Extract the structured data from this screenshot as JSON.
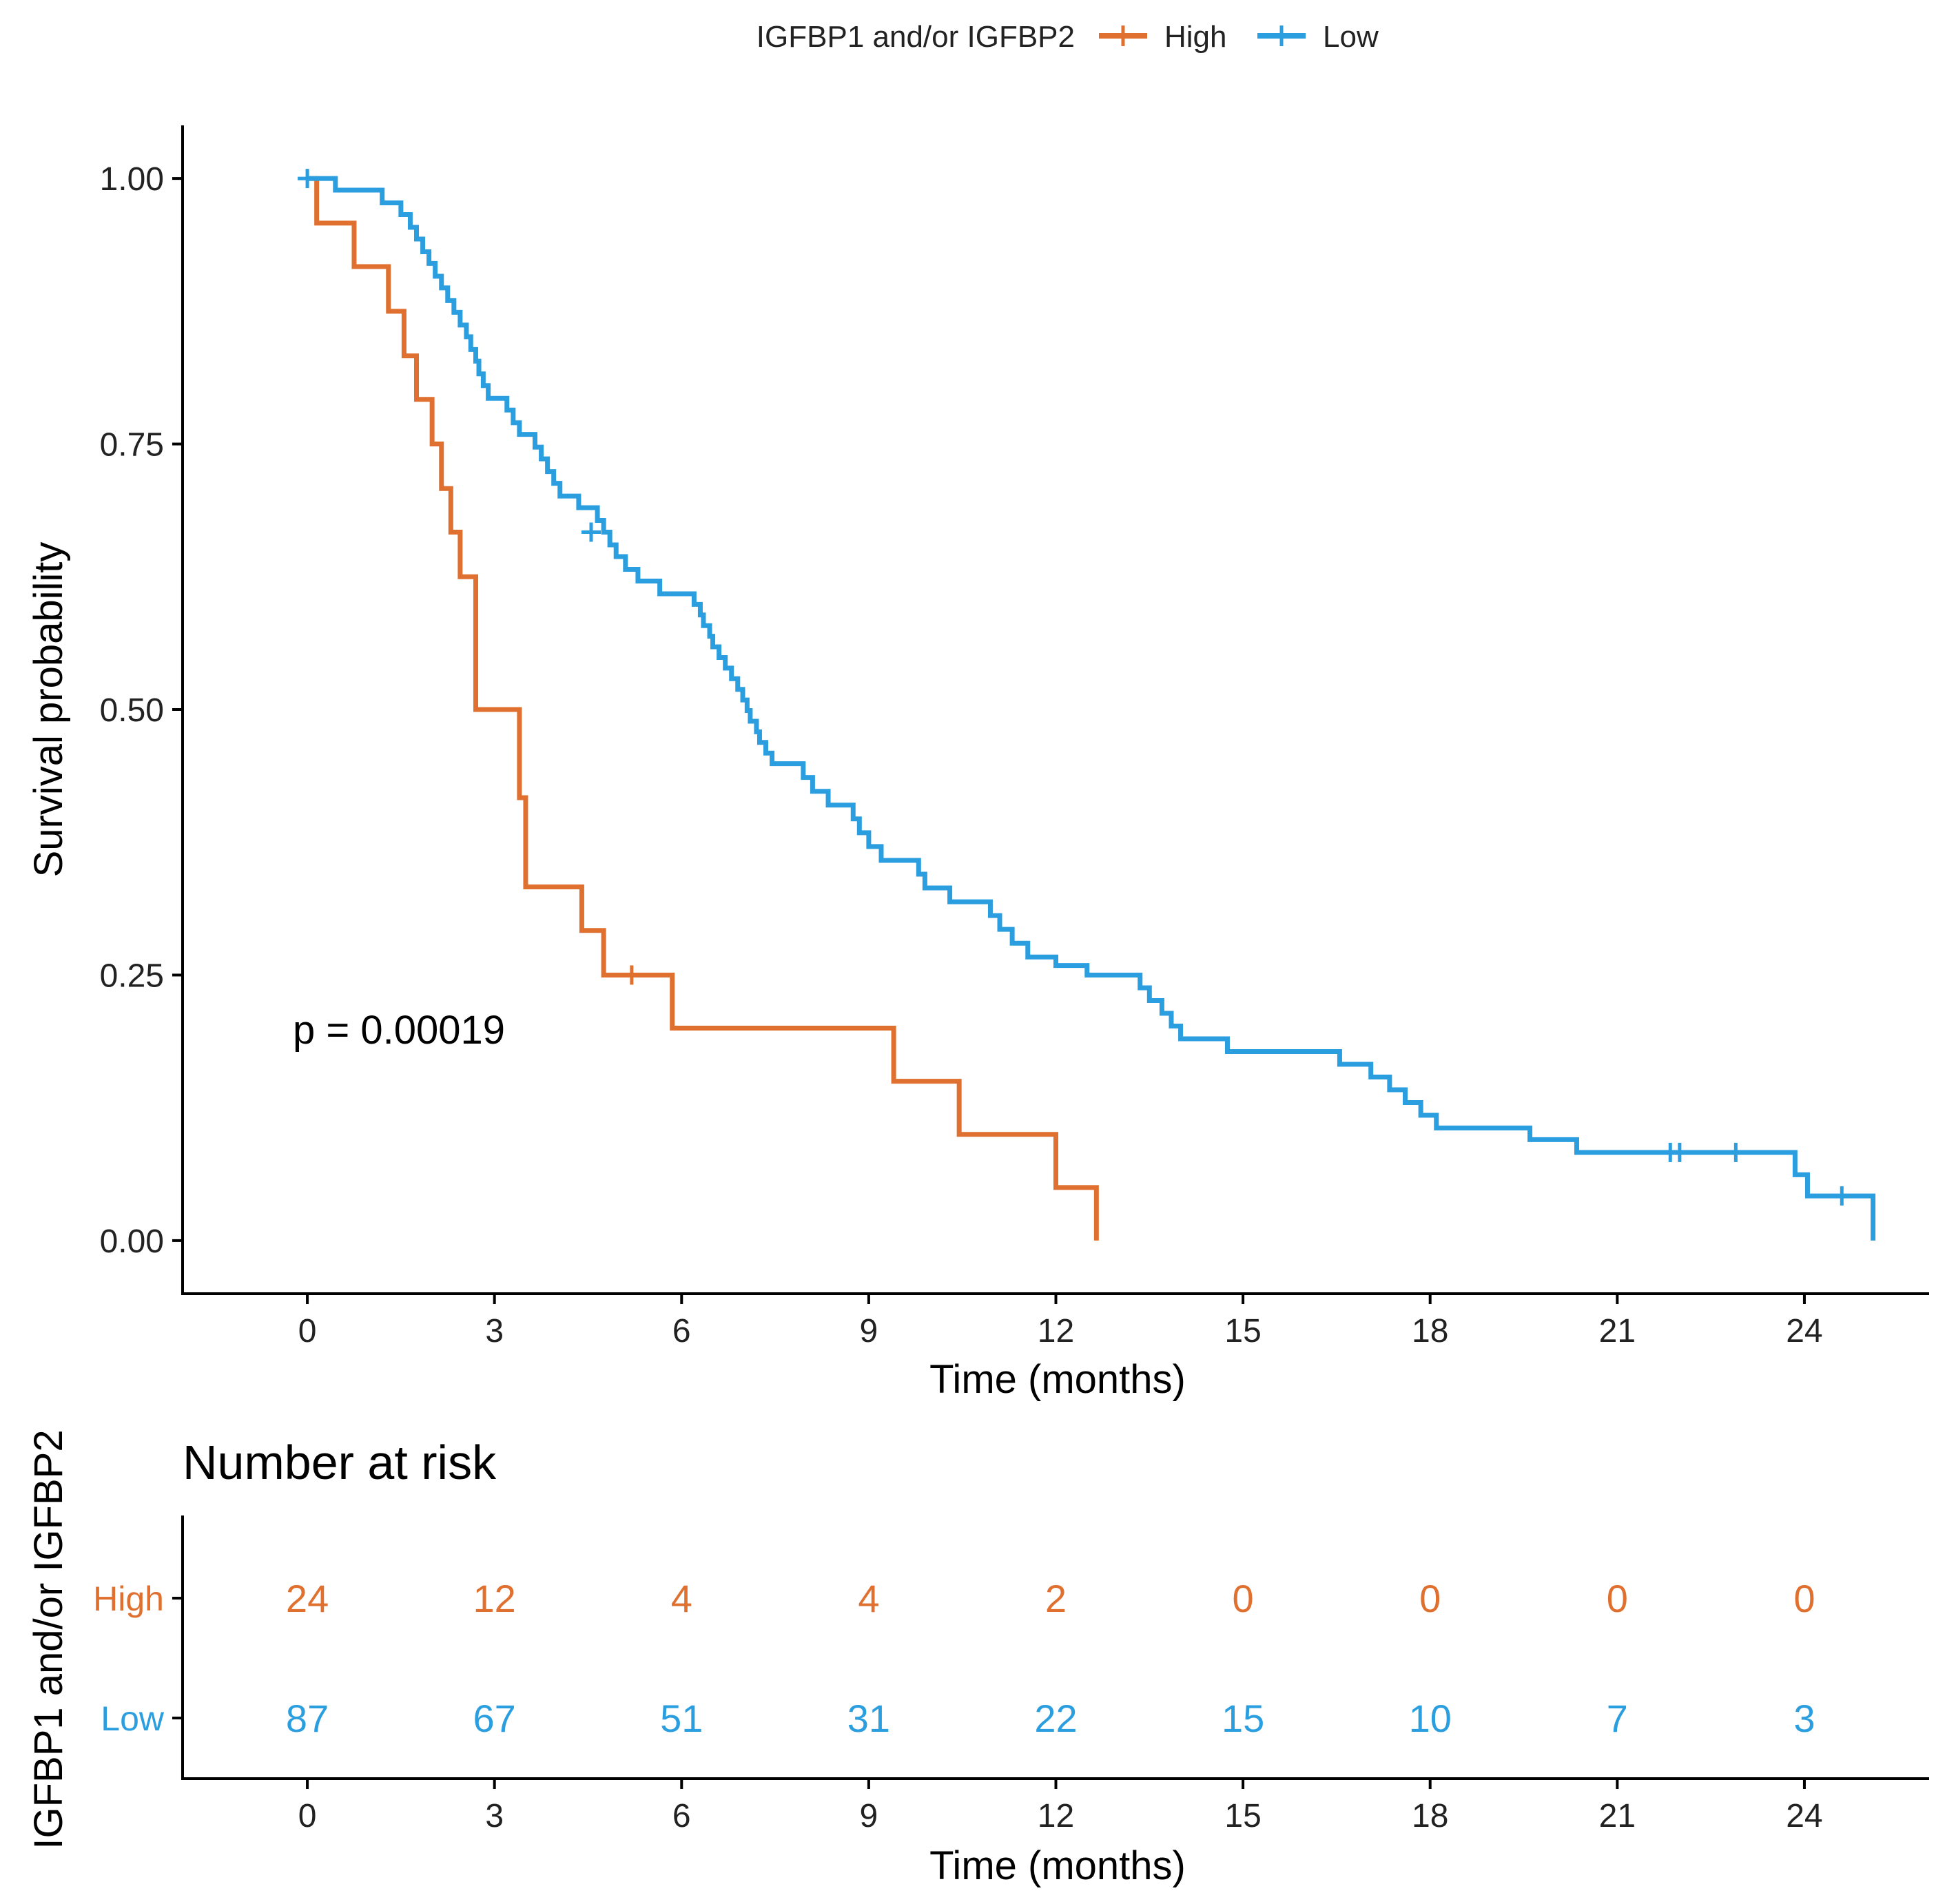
{
  "chart_data": [
    {
      "type": "line",
      "subtype": "kaplan-meier",
      "title": "",
      "xlabel": "Time (months)",
      "ylabel": "Survival probability",
      "xlim": [
        -2,
        26
      ],
      "ylim": [
        -0.05,
        1.05
      ],
      "x_ticks": [
        "0",
        "3",
        "6",
        "9",
        "12",
        "15",
        "18",
        "21",
        "24"
      ],
      "y_ticks": [
        "0.00",
        "0.25",
        "0.50",
        "0.75",
        "1.00"
      ],
      "grid": false,
      "legend": {
        "position": "top",
        "title": "IGFBP1 and/or IGFBP2",
        "entries": [
          "High",
          "Low"
        ]
      },
      "annotation": "p = 0.00019",
      "series": [
        {
          "name": "High",
          "color": "#E0702F",
          "steps": [
            [
              0,
              1.0
            ],
            [
              0.15,
              0.958
            ],
            [
              0.75,
              0.917
            ],
            [
              1.3,
              0.875
            ],
            [
              1.55,
              0.833
            ],
            [
              1.75,
              0.792
            ],
            [
              2.0,
              0.75
            ],
            [
              2.15,
              0.708
            ],
            [
              2.3,
              0.667
            ],
            [
              2.45,
              0.625
            ],
            [
              2.7,
              0.5
            ],
            [
              3.4,
              0.417
            ],
            [
              3.5,
              0.333
            ],
            [
              4.4,
              0.292
            ],
            [
              4.75,
              0.25
            ],
            [
              5.85,
              0.2
            ],
            [
              9.4,
              0.15
            ],
            [
              10.45,
              0.1
            ],
            [
              12.0,
              0.05
            ],
            [
              12.65,
              0.0
            ]
          ],
          "censored": [
            [
              5.2,
              0.25
            ]
          ]
        },
        {
          "name": "Low",
          "color": "#2B9EDF",
          "steps": [
            [
              0,
              1.0
            ],
            [
              0.45,
              0.989
            ],
            [
              1.2,
              0.977
            ],
            [
              1.5,
              0.966
            ],
            [
              1.65,
              0.954
            ],
            [
              1.75,
              0.943
            ],
            [
              1.85,
              0.931
            ],
            [
              1.95,
              0.92
            ],
            [
              2.05,
              0.908
            ],
            [
              2.15,
              0.897
            ],
            [
              2.25,
              0.885
            ],
            [
              2.35,
              0.874
            ],
            [
              2.45,
              0.862
            ],
            [
              2.55,
              0.851
            ],
            [
              2.62,
              0.839
            ],
            [
              2.7,
              0.828
            ],
            [
              2.75,
              0.816
            ],
            [
              2.82,
              0.805
            ],
            [
              2.9,
              0.793
            ],
            [
              3.2,
              0.782
            ],
            [
              3.3,
              0.77
            ],
            [
              3.4,
              0.759
            ],
            [
              3.65,
              0.747
            ],
            [
              3.75,
              0.736
            ],
            [
              3.85,
              0.724
            ],
            [
              3.95,
              0.713
            ],
            [
              4.05,
              0.701
            ],
            [
              4.35,
              0.69
            ],
            [
              4.65,
              0.678
            ],
            [
              4.75,
              0.667
            ],
            [
              4.85,
              0.655
            ],
            [
              4.95,
              0.644
            ],
            [
              5.1,
              0.632
            ],
            [
              5.3,
              0.621
            ],
            [
              5.65,
              0.609
            ],
            [
              6.2,
              0.599
            ],
            [
              6.3,
              0.589
            ],
            [
              6.35,
              0.579
            ],
            [
              6.45,
              0.569
            ],
            [
              6.5,
              0.559
            ],
            [
              6.6,
              0.549
            ],
            [
              6.7,
              0.539
            ],
            [
              6.8,
              0.529
            ],
            [
              6.9,
              0.519
            ],
            [
              6.98,
              0.509
            ],
            [
              7.05,
              0.499
            ],
            [
              7.1,
              0.489
            ],
            [
              7.2,
              0.479
            ],
            [
              7.25,
              0.469
            ],
            [
              7.35,
              0.459
            ],
            [
              7.45,
              0.449
            ],
            [
              7.95,
              0.436
            ],
            [
              8.1,
              0.423
            ],
            [
              8.35,
              0.41
            ],
            [
              8.75,
              0.397
            ],
            [
              8.85,
              0.384
            ],
            [
              9.0,
              0.371
            ],
            [
              9.2,
              0.358
            ],
            [
              9.8,
              0.345
            ],
            [
              9.9,
              0.332
            ],
            [
              10.3,
              0.319
            ],
            [
              10.95,
              0.306
            ],
            [
              11.1,
              0.293
            ],
            [
              11.3,
              0.28
            ],
            [
              11.55,
              0.267
            ],
            [
              12.0,
              0.259
            ],
            [
              12.5,
              0.25
            ],
            [
              13.35,
              0.238
            ],
            [
              13.5,
              0.226
            ],
            [
              13.7,
              0.214
            ],
            [
              13.85,
              0.202
            ],
            [
              14.0,
              0.19
            ],
            [
              14.75,
              0.178
            ],
            [
              16.55,
              0.166
            ],
            [
              17.05,
              0.154
            ],
            [
              17.35,
              0.142
            ],
            [
              17.6,
              0.13
            ],
            [
              17.85,
              0.118
            ],
            [
              18.1,
              0.106
            ],
            [
              19.6,
              0.095
            ],
            [
              20.35,
              0.083
            ],
            [
              23.85,
              0.062
            ],
            [
              24.05,
              0.042
            ],
            [
              25.1,
              0.0
            ]
          ],
          "censored": [
            [
              0.0,
              1.0
            ],
            [
              4.55,
              0.667
            ],
            [
              21.85,
              0.083
            ],
            [
              22.0,
              0.083
            ],
            [
              22.9,
              0.083
            ],
            [
              24.6,
              0.042
            ]
          ]
        }
      ]
    },
    {
      "type": "table",
      "title": "Number at risk",
      "xlabel": "Time (months)",
      "ylabel": "IGFBP1 and/or IGFBP2",
      "xlim": [
        -2,
        26
      ],
      "x_ticks": [
        "0",
        "3",
        "6",
        "9",
        "12",
        "15",
        "18",
        "21",
        "24"
      ],
      "rows": [
        {
          "name": "High",
          "color": "#E0702F",
          "values": [
            "24",
            "12",
            "4",
            "4",
            "2",
            "0",
            "0",
            "0",
            "0"
          ]
        },
        {
          "name": "Low",
          "color": "#2B9EDF",
          "values": [
            "87",
            "67",
            "51",
            "31",
            "22",
            "15",
            "10",
            "7",
            "3"
          ]
        }
      ]
    }
  ]
}
